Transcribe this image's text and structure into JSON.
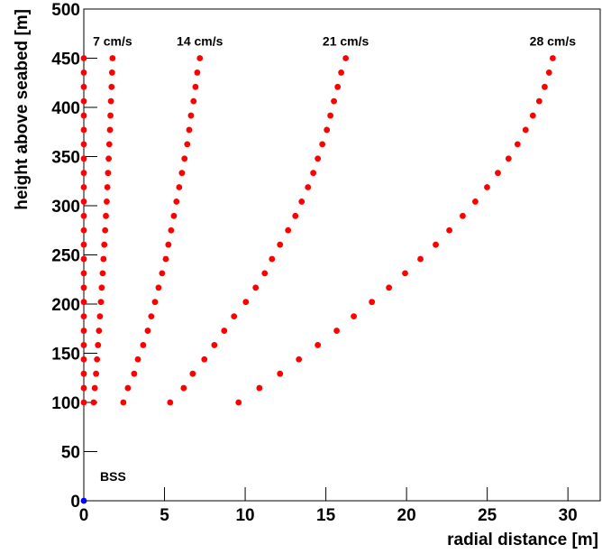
{
  "chart_data": {
    "type": "scatter",
    "x_label": "radial distance [m]",
    "y_label": "height above seabed [m]",
    "xlim": [
      0,
      32
    ],
    "ylim": [
      0,
      500
    ],
    "xticks": [
      0,
      5,
      10,
      15,
      20,
      25,
      30
    ],
    "yticks": [
      0,
      50,
      100,
      150,
      200,
      250,
      300,
      350,
      400,
      450,
      500
    ],
    "y": [
      100,
      114.6,
      129.2,
      143.8,
      158.3,
      172.9,
      187.5,
      202.1,
      216.7,
      231.3,
      245.8,
      260.4,
      275,
      289.6,
      304.2,
      318.8,
      333.3,
      347.9,
      362.5,
      377.1,
      391.7,
      406.3,
      420.8,
      435.4,
      450
    ],
    "series": [
      {
        "color": "#ff0000",
        "x": [
          0,
          0,
          0,
          0,
          0,
          0,
          0,
          0,
          0,
          0,
          0,
          0,
          0,
          0,
          0,
          0,
          0,
          0,
          0,
          0,
          0,
          0,
          0,
          0,
          0
        ]
      },
      {
        "name": "7 cm/s",
        "color": "#ff0000",
        "x": [
          0.61,
          0.68,
          0.76,
          0.82,
          0.88,
          0.94,
          1.0,
          1.06,
          1.11,
          1.17,
          1.22,
          1.27,
          1.32,
          1.37,
          1.42,
          1.46,
          1.5,
          1.54,
          1.58,
          1.62,
          1.65,
          1.68,
          1.72,
          1.75,
          1.78
        ]
      },
      {
        "name": "14 cm/s",
        "color": "#ff0000",
        "x": [
          2.45,
          2.73,
          3.12,
          3.35,
          3.68,
          3.96,
          4.18,
          4.41,
          4.63,
          4.85,
          5.08,
          5.24,
          5.41,
          5.58,
          5.74,
          5.91,
          6.08,
          6.24,
          6.41,
          6.53,
          6.64,
          6.8,
          6.92,
          7.03,
          7.19
        ]
      },
      {
        "name": "21 cm/s",
        "color": "#ff0000",
        "x": [
          5.35,
          6.19,
          6.75,
          7.47,
          8.09,
          8.7,
          9.31,
          10.04,
          10.65,
          11.21,
          11.66,
          12.16,
          12.66,
          13.11,
          13.5,
          13.89,
          14.22,
          14.5,
          14.78,
          15.06,
          15.28,
          15.5,
          15.73,
          15.95,
          16.23
        ]
      },
      {
        "name": "28 cm/s",
        "color": "#ff0000",
        "x": [
          9.59,
          10.88,
          12.16,
          13.33,
          14.5,
          15.67,
          16.73,
          17.85,
          18.91,
          19.91,
          20.86,
          21.81,
          22.65,
          23.48,
          24.26,
          24.99,
          25.66,
          26.32,
          26.88,
          27.38,
          27.83,
          28.22,
          28.56,
          28.83,
          29.06
        ]
      },
      {
        "name": "BSS",
        "color": "#0000ff",
        "x": [
          0
        ],
        "y": [
          0
        ]
      }
    ]
  }
}
